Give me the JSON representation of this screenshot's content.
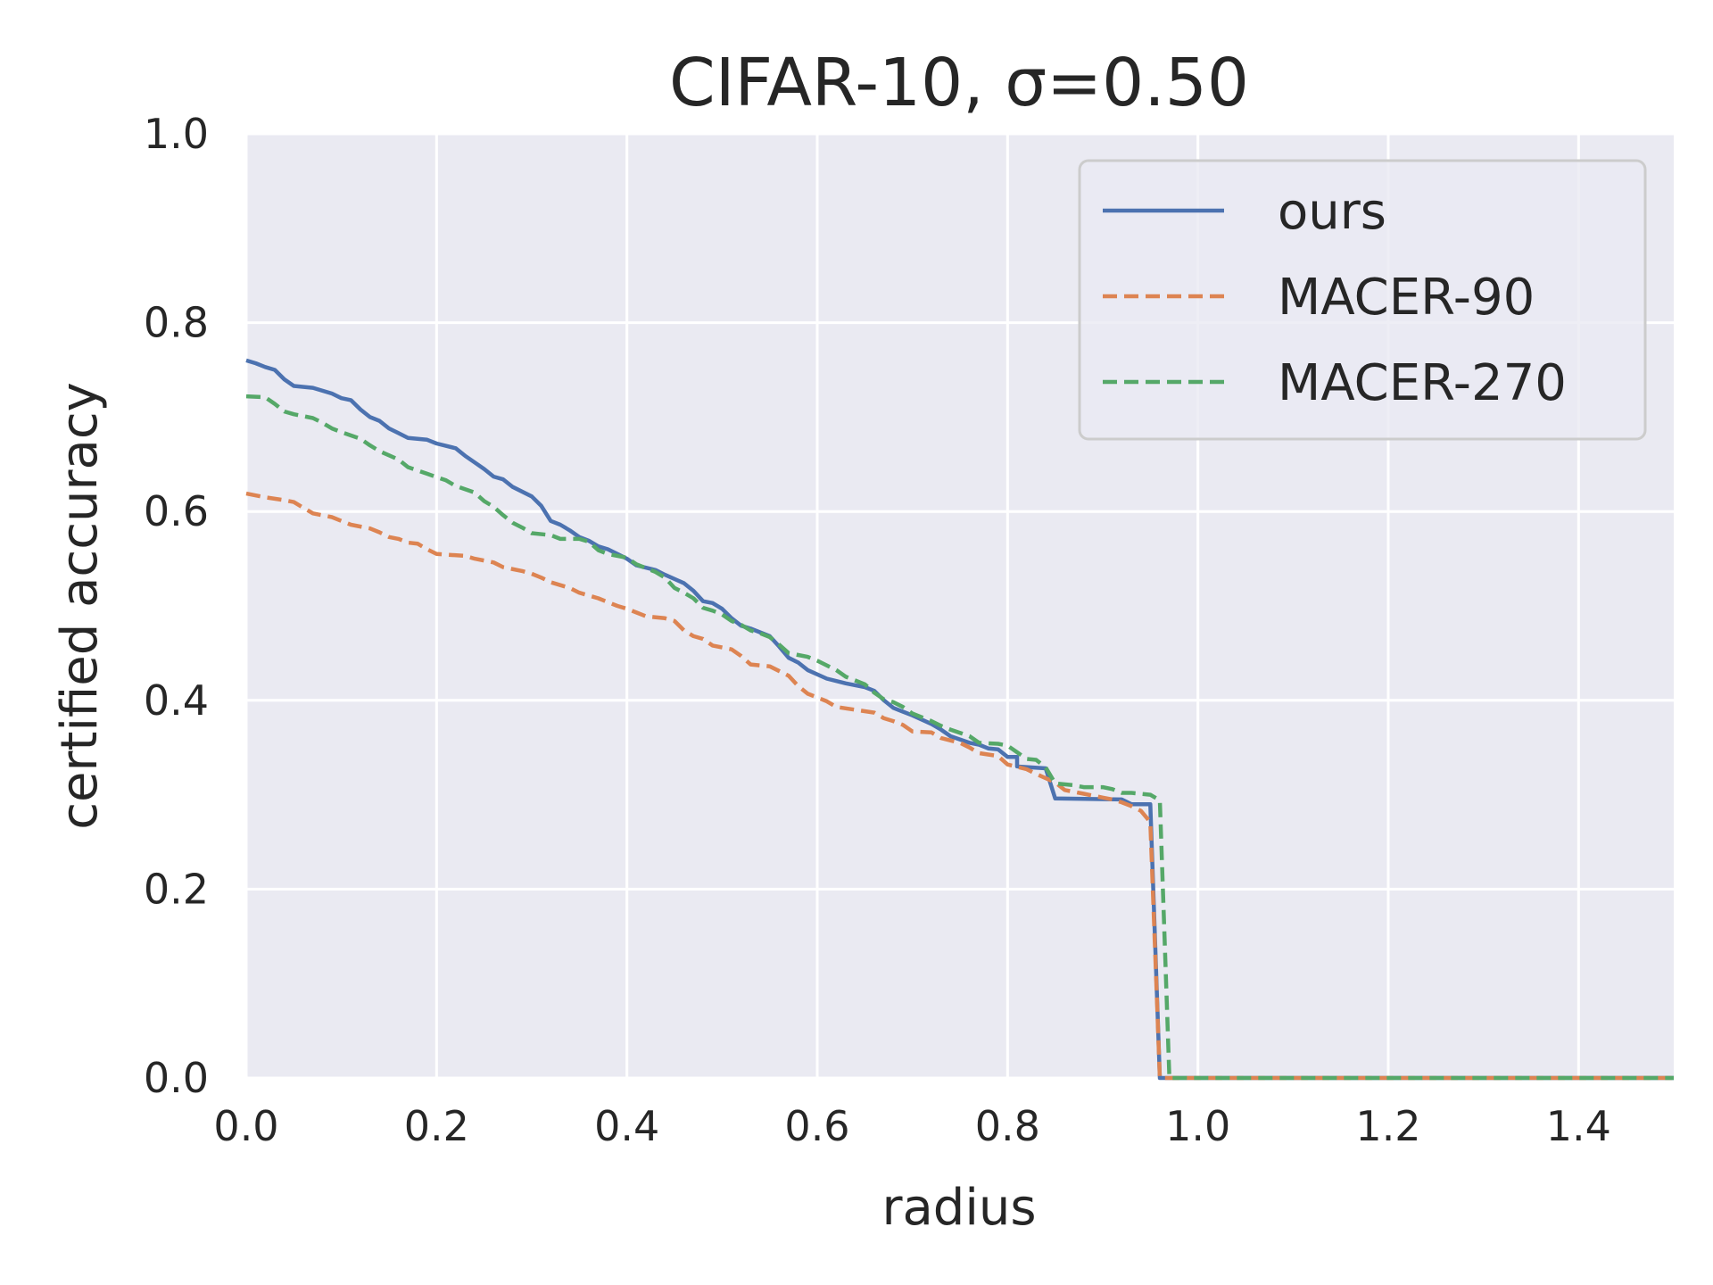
{
  "chart_data": {
    "type": "line",
    "title": "CIFAR-10, σ=0.50",
    "xlabel": "radius",
    "ylabel": "certified accuracy",
    "xlim": [
      0,
      1.5
    ],
    "ylim": [
      0,
      1.0
    ],
    "xticks": [
      "0.0",
      "0.2",
      "0.4",
      "0.6",
      "0.8",
      "1.0",
      "1.2",
      "1.4"
    ],
    "yticks": [
      "0.0",
      "0.2",
      "0.4",
      "0.6",
      "0.8",
      "1.0"
    ],
    "grid": true,
    "legend_position": "top-right",
    "series": [
      {
        "name": "ours",
        "color": "#4c72b0",
        "dash": "solid",
        "points": [
          [
            0,
            0.76
          ],
          [
            0.01,
            0.757
          ],
          [
            0.02,
            0.753
          ],
          [
            0.03,
            0.75
          ],
          [
            0.04,
            0.74
          ],
          [
            0.05,
            0.733
          ],
          [
            0.07,
            0.731
          ],
          [
            0.09,
            0.725
          ],
          [
            0.1,
            0.72
          ],
          [
            0.11,
            0.718
          ],
          [
            0.12,
            0.708
          ],
          [
            0.13,
            0.7
          ],
          [
            0.14,
            0.696
          ],
          [
            0.15,
            0.688
          ],
          [
            0.16,
            0.683
          ],
          [
            0.17,
            0.678
          ],
          [
            0.19,
            0.676
          ],
          [
            0.2,
            0.672
          ],
          [
            0.22,
            0.667
          ],
          [
            0.23,
            0.659
          ],
          [
            0.24,
            0.652
          ],
          [
            0.25,
            0.645
          ],
          [
            0.26,
            0.637
          ],
          [
            0.27,
            0.634
          ],
          [
            0.28,
            0.626
          ],
          [
            0.3,
            0.616
          ],
          [
            0.31,
            0.606
          ],
          [
            0.32,
            0.59
          ],
          [
            0.33,
            0.586
          ],
          [
            0.34,
            0.58
          ],
          [
            0.35,
            0.573
          ],
          [
            0.36,
            0.569
          ],
          [
            0.37,
            0.563
          ],
          [
            0.38,
            0.56
          ],
          [
            0.39,
            0.555
          ],
          [
            0.4,
            0.55
          ],
          [
            0.41,
            0.543
          ],
          [
            0.43,
            0.538
          ],
          [
            0.44,
            0.533
          ],
          [
            0.46,
            0.524
          ],
          [
            0.47,
            0.516
          ],
          [
            0.48,
            0.505
          ],
          [
            0.49,
            0.503
          ],
          [
            0.5,
            0.497
          ],
          [
            0.51,
            0.487
          ],
          [
            0.52,
            0.479
          ],
          [
            0.53,
            0.476
          ],
          [
            0.55,
            0.468
          ],
          [
            0.56,
            0.457
          ],
          [
            0.57,
            0.445
          ],
          [
            0.58,
            0.44
          ],
          [
            0.59,
            0.432
          ],
          [
            0.61,
            0.423
          ],
          [
            0.63,
            0.418
          ],
          [
            0.65,
            0.414
          ],
          [
            0.66,
            0.41
          ],
          [
            0.67,
            0.4
          ],
          [
            0.68,
            0.392
          ],
          [
            0.69,
            0.388
          ],
          [
            0.7,
            0.384
          ],
          [
            0.72,
            0.375
          ],
          [
            0.73,
            0.369
          ],
          [
            0.74,
            0.362
          ],
          [
            0.76,
            0.355
          ],
          [
            0.77,
            0.353
          ],
          [
            0.78,
            0.349
          ],
          [
            0.79,
            0.348
          ],
          [
            0.8,
            0.34
          ],
          [
            0.81,
            0.34
          ],
          [
            0.81,
            0.33
          ],
          [
            0.84,
            0.328
          ],
          [
            0.85,
            0.296
          ],
          [
            0.92,
            0.295
          ],
          [
            0.93,
            0.29
          ],
          [
            0.95,
            0.29
          ],
          [
            0.96,
            0.0
          ],
          [
            1.5,
            0.0
          ]
        ]
      },
      {
        "name": "MACER-90",
        "color": "#dd8452",
        "dash": "dashed",
        "points": [
          [
            0,
            0.619
          ],
          [
            0.02,
            0.615
          ],
          [
            0.04,
            0.612
          ],
          [
            0.05,
            0.61
          ],
          [
            0.06,
            0.604
          ],
          [
            0.07,
            0.598
          ],
          [
            0.09,
            0.594
          ],
          [
            0.1,
            0.59
          ],
          [
            0.11,
            0.586
          ],
          [
            0.13,
            0.582
          ],
          [
            0.14,
            0.578
          ],
          [
            0.15,
            0.573
          ],
          [
            0.16,
            0.571
          ],
          [
            0.17,
            0.567
          ],
          [
            0.18,
            0.566
          ],
          [
            0.19,
            0.56
          ],
          [
            0.2,
            0.555
          ],
          [
            0.23,
            0.553
          ],
          [
            0.24,
            0.55
          ],
          [
            0.26,
            0.546
          ],
          [
            0.27,
            0.541
          ],
          [
            0.29,
            0.537
          ],
          [
            0.3,
            0.534
          ],
          [
            0.31,
            0.53
          ],
          [
            0.32,
            0.525
          ],
          [
            0.34,
            0.519
          ],
          [
            0.35,
            0.514
          ],
          [
            0.37,
            0.508
          ],
          [
            0.38,
            0.504
          ],
          [
            0.39,
            0.5
          ],
          [
            0.4,
            0.497
          ],
          [
            0.41,
            0.493
          ],
          [
            0.42,
            0.489
          ],
          [
            0.44,
            0.487
          ],
          [
            0.45,
            0.484
          ],
          [
            0.46,
            0.474
          ],
          [
            0.47,
            0.468
          ],
          [
            0.48,
            0.465
          ],
          [
            0.49,
            0.458
          ],
          [
            0.51,
            0.454
          ],
          [
            0.52,
            0.447
          ],
          [
            0.53,
            0.438
          ],
          [
            0.55,
            0.436
          ],
          [
            0.57,
            0.426
          ],
          [
            0.58,
            0.415
          ],
          [
            0.59,
            0.407
          ],
          [
            0.61,
            0.399
          ],
          [
            0.62,
            0.393
          ],
          [
            0.64,
            0.39
          ],
          [
            0.66,
            0.387
          ],
          [
            0.67,
            0.381
          ],
          [
            0.68,
            0.378
          ],
          [
            0.69,
            0.374
          ],
          [
            0.7,
            0.367
          ],
          [
            0.72,
            0.366
          ],
          [
            0.73,
            0.36
          ],
          [
            0.75,
            0.355
          ],
          [
            0.76,
            0.35
          ],
          [
            0.77,
            0.344
          ],
          [
            0.79,
            0.341
          ],
          [
            0.8,
            0.332
          ],
          [
            0.82,
            0.327
          ],
          [
            0.83,
            0.322
          ],
          [
            0.85,
            0.313
          ],
          [
            0.86,
            0.305
          ],
          [
            0.88,
            0.301
          ],
          [
            0.9,
            0.297
          ],
          [
            0.91,
            0.295
          ],
          [
            0.92,
            0.292
          ],
          [
            0.93,
            0.288
          ],
          [
            0.94,
            0.283
          ],
          [
            0.95,
            0.271
          ],
          [
            0.96,
            0.0
          ],
          [
            1.5,
            0.0
          ]
        ]
      },
      {
        "name": "MACER-270",
        "color": "#55a868",
        "dash": "dashed",
        "points": [
          [
            0,
            0.722
          ],
          [
            0.02,
            0.721
          ],
          [
            0.03,
            0.714
          ],
          [
            0.04,
            0.706
          ],
          [
            0.05,
            0.703
          ],
          [
            0.07,
            0.699
          ],
          [
            0.08,
            0.694
          ],
          [
            0.09,
            0.688
          ],
          [
            0.1,
            0.684
          ],
          [
            0.12,
            0.677
          ],
          [
            0.13,
            0.67
          ],
          [
            0.14,
            0.664
          ],
          [
            0.16,
            0.655
          ],
          [
            0.17,
            0.647
          ],
          [
            0.19,
            0.64
          ],
          [
            0.21,
            0.633
          ],
          [
            0.22,
            0.627
          ],
          [
            0.24,
            0.62
          ],
          [
            0.25,
            0.611
          ],
          [
            0.26,
            0.605
          ],
          [
            0.27,
            0.596
          ],
          [
            0.28,
            0.588
          ],
          [
            0.29,
            0.583
          ],
          [
            0.3,
            0.577
          ],
          [
            0.32,
            0.575
          ],
          [
            0.33,
            0.571
          ],
          [
            0.35,
            0.571
          ],
          [
            0.36,
            0.568
          ],
          [
            0.37,
            0.559
          ],
          [
            0.38,
            0.555
          ],
          [
            0.4,
            0.551
          ],
          [
            0.41,
            0.544
          ],
          [
            0.43,
            0.536
          ],
          [
            0.44,
            0.53
          ],
          [
            0.45,
            0.519
          ],
          [
            0.46,
            0.514
          ],
          [
            0.47,
            0.508
          ],
          [
            0.48,
            0.498
          ],
          [
            0.49,
            0.495
          ],
          [
            0.5,
            0.491
          ],
          [
            0.51,
            0.484
          ],
          [
            0.52,
            0.48
          ],
          [
            0.53,
            0.474
          ],
          [
            0.54,
            0.471
          ],
          [
            0.55,
            0.467
          ],
          [
            0.56,
            0.459
          ],
          [
            0.57,
            0.45
          ],
          [
            0.59,
            0.446
          ],
          [
            0.6,
            0.442
          ],
          [
            0.62,
            0.432
          ],
          [
            0.63,
            0.425
          ],
          [
            0.65,
            0.417
          ],
          [
            0.66,
            0.408
          ],
          [
            0.67,
            0.401
          ],
          [
            0.68,
            0.398
          ],
          [
            0.69,
            0.393
          ],
          [
            0.7,
            0.386
          ],
          [
            0.71,
            0.382
          ],
          [
            0.72,
            0.378
          ],
          [
            0.73,
            0.373
          ],
          [
            0.74,
            0.369
          ],
          [
            0.76,
            0.362
          ],
          [
            0.77,
            0.355
          ],
          [
            0.79,
            0.354
          ],
          [
            0.8,
            0.352
          ],
          [
            0.81,
            0.345
          ],
          [
            0.82,
            0.338
          ],
          [
            0.83,
            0.337
          ],
          [
            0.84,
            0.329
          ],
          [
            0.85,
            0.312
          ],
          [
            0.87,
            0.31
          ],
          [
            0.88,
            0.308
          ],
          [
            0.9,
            0.308
          ],
          [
            0.91,
            0.306
          ],
          [
            0.92,
            0.302
          ],
          [
            0.93,
            0.302
          ],
          [
            0.95,
            0.3
          ],
          [
            0.96,
            0.294
          ],
          [
            0.97,
            0.0
          ],
          [
            1.5,
            0.0
          ]
        ]
      }
    ]
  }
}
